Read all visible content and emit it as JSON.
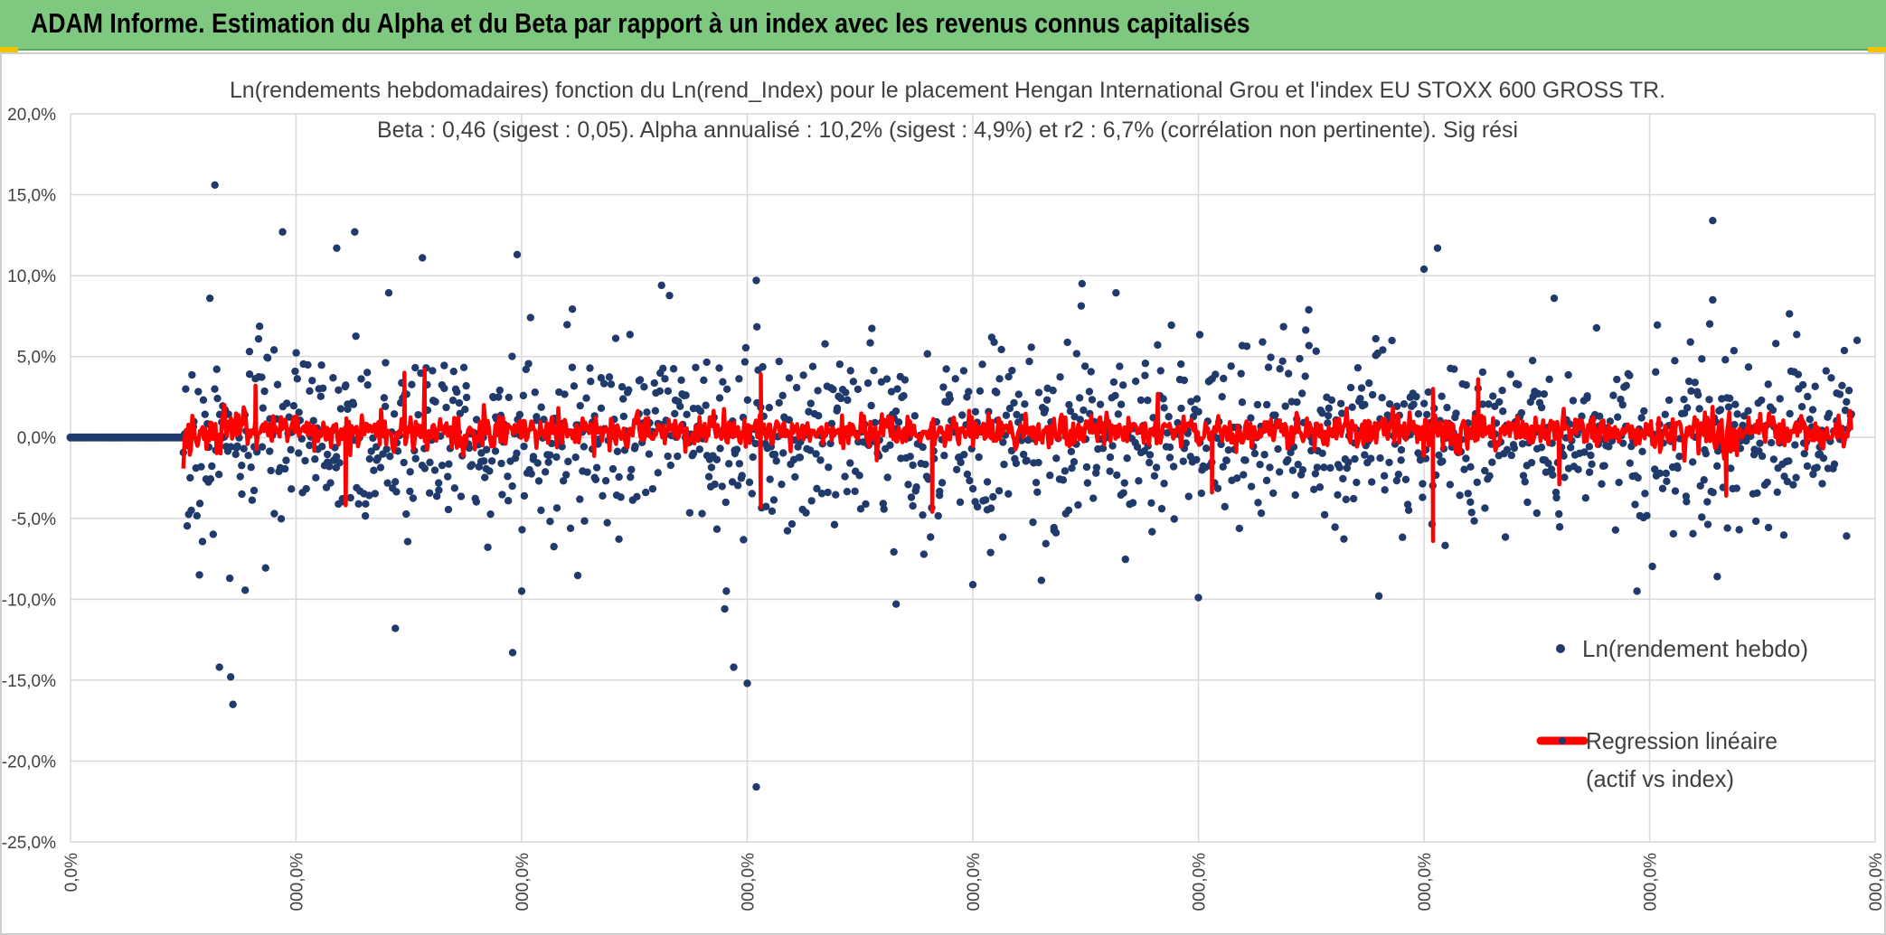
{
  "header": {
    "title": "ADAM Informe. Estimation du Alpha et du Beta par rapport à un index avec les revenus connus capitalisés"
  },
  "colors": {
    "header_bg": "#7fc87f",
    "accent_corner": "#f2c200",
    "scatter": "#1f3a6b",
    "regression": "#ff0000",
    "grid": "#d9d9d9"
  },
  "chart_data": {
    "type": "scatter",
    "title_lines": [
      "Ln(rendements hebdomadaires) fonction du Ln(rend_Index) pour le placement Hengan International Grou et l'index EU STOXX 600 GROSS TR.",
      "Beta : 0,46 (sigest : 0,05). Alpha annualisé : 10,2% (sigest : 4,9%) et r2 : 6,7% (corrélation non pertinente). Sig rési"
    ],
    "y_ticks": [
      "20,0%",
      "15,0%",
      "10,0%",
      "5,0%",
      "0,0%",
      "-5,0%",
      "-10,0%",
      "-15,0%",
      "-20,0%",
      "-25,0%"
    ],
    "y_tick_values": [
      20,
      15,
      10,
      5,
      0,
      -5,
      -10,
      -15,
      -20,
      -25
    ],
    "ylim": [
      -25,
      20
    ],
    "x_ticks": [
      "0,0%",
      "000,0%",
      "000,0%",
      "000,0%",
      "000,0%",
      "000,0%",
      "000,0%",
      "000,0%",
      "000,0%"
    ],
    "xlim": [
      0,
      8
    ],
    "grid": true,
    "legend_position": "right",
    "series": [
      {
        "name": "Ln(rendement hebdo)",
        "kind": "scatter",
        "x_range": [
          0.5,
          7.9
        ],
        "flat_zero_until": 0.5,
        "count": 1500,
        "notable_points": [
          {
            "x": 0.64,
            "y": 15.6
          },
          {
            "x": 0.94,
            "y": 12.7
          },
          {
            "x": 1.26,
            "y": 12.7
          },
          {
            "x": 1.18,
            "y": 11.7
          },
          {
            "x": 1.56,
            "y": 11.1
          },
          {
            "x": 1.98,
            "y": 11.3
          },
          {
            "x": 2.0,
            "y": -9.5
          },
          {
            "x": 1.96,
            "y": -13.3
          },
          {
            "x": 0.72,
            "y": -16.5
          },
          {
            "x": 0.66,
            "y": -14.2
          },
          {
            "x": 0.71,
            "y": -14.8
          },
          {
            "x": 1.44,
            "y": -11.8
          },
          {
            "x": 2.94,
            "y": -14.2
          },
          {
            "x": 3.0,
            "y": -15.2
          },
          {
            "x": 3.04,
            "y": -21.6
          },
          {
            "x": 2.9,
            "y": -10.6
          },
          {
            "x": 3.66,
            "y": -10.3
          },
          {
            "x": 4.0,
            "y": -9.1
          },
          {
            "x": 5.0,
            "y": -9.9
          },
          {
            "x": 5.8,
            "y": -9.8
          },
          {
            "x": 6.06,
            "y": 11.7
          },
          {
            "x": 6.0,
            "y": 10.4
          },
          {
            "x": 7.28,
            "y": 13.4
          },
          {
            "x": 7.28,
            "y": 8.5
          },
          {
            "x": 7.3,
            "y": -8.6
          },
          {
            "x": 7.92,
            "y": 6.0
          },
          {
            "x": 3.04,
            "y": 9.7
          },
          {
            "x": 2.62,
            "y": 9.4
          }
        ]
      },
      {
        "name": "Regression linéaire (actif vs index)",
        "legend_lines": [
          "Regression linéaire",
          "(actif vs index)"
        ],
        "kind": "line",
        "beta": 0.46,
        "typical_range": [
          -2.0,
          2.0
        ],
        "spikes": [
          {
            "x": 0.82,
            "y": 3.2
          },
          {
            "x": 1.22,
            "y": -4.2
          },
          {
            "x": 1.48,
            "y": 4.0
          },
          {
            "x": 1.57,
            "y": 4.2
          },
          {
            "x": 3.06,
            "y": -4.3
          },
          {
            "x": 3.06,
            "y": 3.9
          },
          {
            "x": 3.82,
            "y": -4.6
          },
          {
            "x": 5.06,
            "y": -3.4
          },
          {
            "x": 4.82,
            "y": 2.7
          },
          {
            "x": 6.04,
            "y": -6.4
          },
          {
            "x": 6.04,
            "y": 3.0
          },
          {
            "x": 6.24,
            "y": 3.6
          },
          {
            "x": 6.6,
            "y": -2.9
          },
          {
            "x": 7.34,
            "y": -3.6
          }
        ]
      }
    ]
  }
}
